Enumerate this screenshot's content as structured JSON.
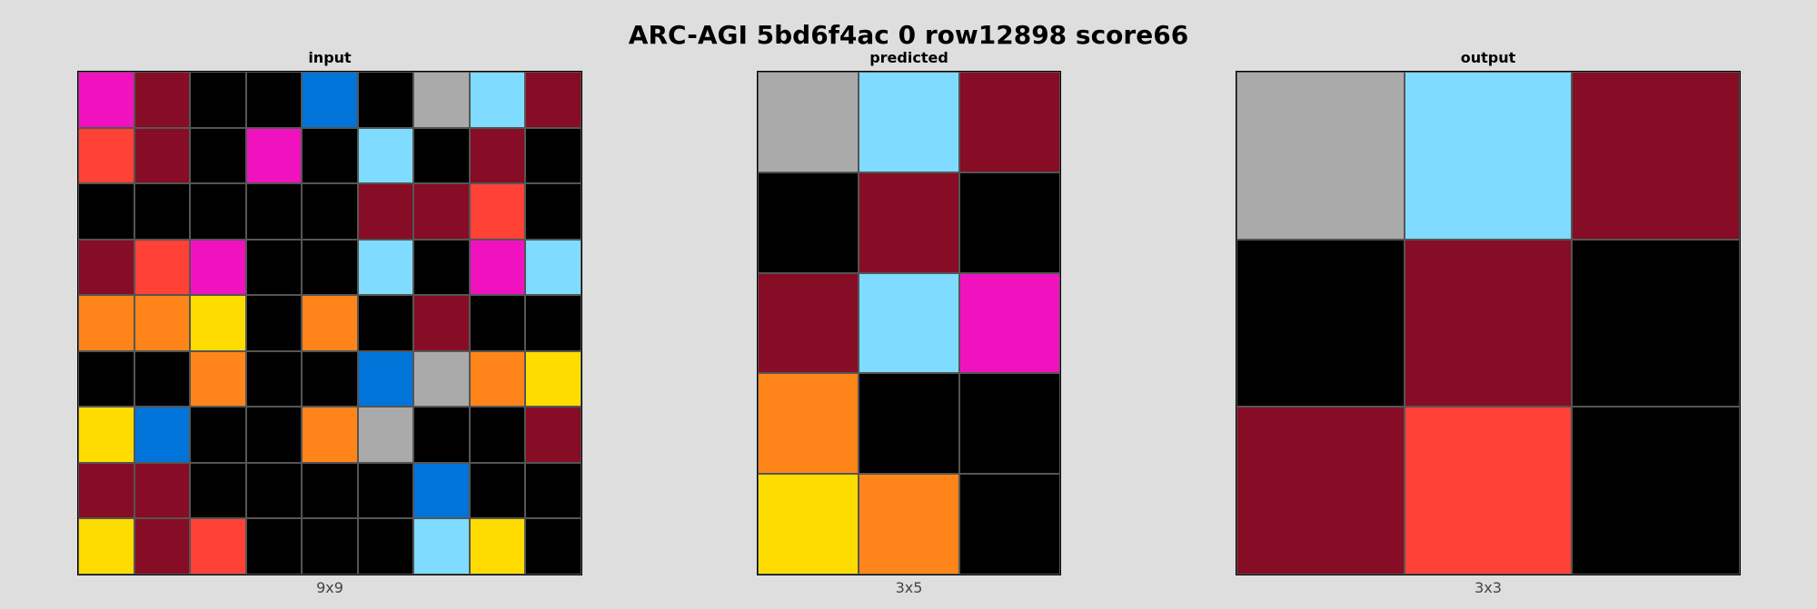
{
  "title": "ARC-AGI 5bd6f4ac 0 row12898 score66",
  "palette": {
    "0": "#000000",
    "1": "#0074D9",
    "2": "#FF4136",
    "3": "#2ECC40",
    "4": "#FFDC00",
    "5": "#AAAAAA",
    "6": "#F012BE",
    "7": "#FF851B",
    "8": "#7FDBFF",
    "9": "#870C25"
  },
  "panels": [
    {
      "label": "input",
      "dims": "9x9",
      "rows": [
        [
          6,
          9,
          0,
          0,
          1,
          0,
          5,
          8,
          9
        ],
        [
          2,
          9,
          0,
          6,
          0,
          8,
          0,
          9,
          0
        ],
        [
          0,
          0,
          0,
          0,
          0,
          9,
          9,
          2,
          0
        ],
        [
          9,
          2,
          6,
          0,
          0,
          8,
          0,
          6,
          8
        ],
        [
          7,
          7,
          4,
          0,
          7,
          0,
          9,
          0,
          0
        ],
        [
          0,
          0,
          7,
          0,
          0,
          1,
          5,
          7,
          4
        ],
        [
          4,
          1,
          0,
          0,
          7,
          5,
          0,
          0,
          9
        ],
        [
          9,
          9,
          0,
          0,
          0,
          0,
          1,
          0,
          0
        ],
        [
          4,
          9,
          2,
          0,
          0,
          0,
          8,
          4,
          0
        ]
      ]
    },
    {
      "label": "predicted",
      "dims": "3x5",
      "rows": [
        [
          5,
          8,
          9
        ],
        [
          0,
          9,
          0
        ],
        [
          9,
          8,
          6
        ],
        [
          7,
          0,
          0
        ],
        [
          4,
          7,
          0
        ]
      ]
    },
    {
      "label": "output",
      "dims": "3x3",
      "rows": [
        [
          5,
          8,
          9
        ],
        [
          0,
          9,
          0
        ],
        [
          9,
          2,
          0
        ]
      ]
    }
  ]
}
